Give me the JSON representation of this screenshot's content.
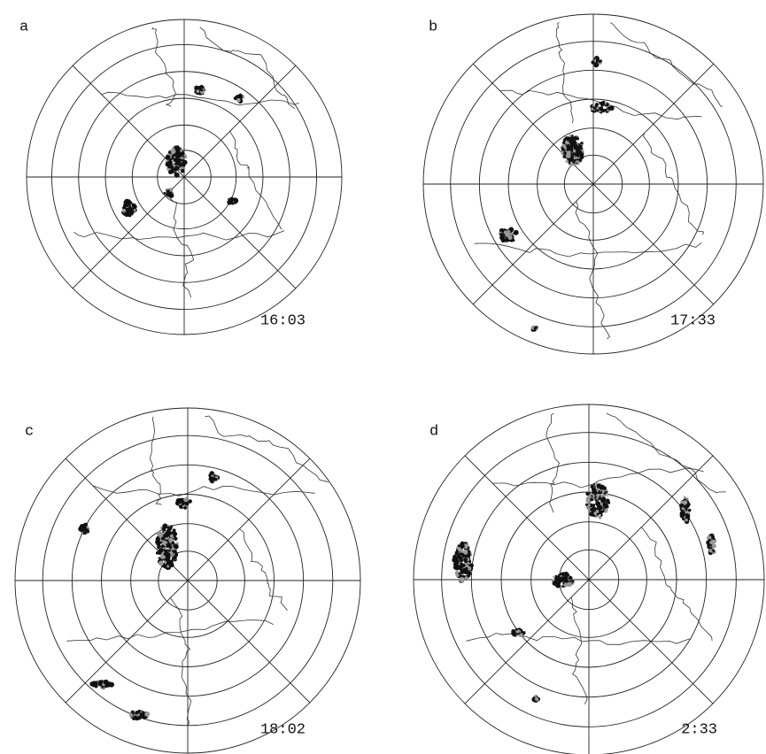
{
  "panels": [
    {
      "label": "a",
      "time": "16:03"
    },
    {
      "label": "b",
      "time": "17:33"
    },
    {
      "label": "c",
      "time": "18:02"
    },
    {
      "label": "d",
      "time": "2:33"
    }
  ]
}
